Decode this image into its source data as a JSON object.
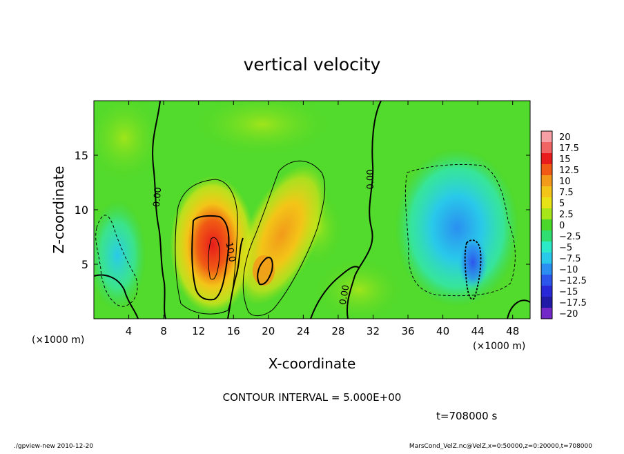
{
  "chart_data": {
    "type": "heatmap",
    "title": "vertical velocity",
    "xlabel": "X-coordinate",
    "ylabel": "Z-coordinate",
    "x_unit_label": "(×1000 m)",
    "y_unit_label": "(×1000 m)",
    "xlim": [
      0,
      50
    ],
    "ylim": [
      0,
      20
    ],
    "x_ticks": [
      4,
      8,
      12,
      16,
      20,
      24,
      28,
      32,
      36,
      40,
      44,
      48
    ],
    "y_ticks": [
      5,
      10,
      15
    ],
    "colorbar": {
      "labels": [
        "20",
        "17.5",
        "15",
        "12.5",
        "10",
        "7.5",
        "5",
        "2.5",
        "0",
        "−2.5",
        "−5",
        "−7.5",
        "−10",
        "−12.5",
        "−15",
        "−17.5",
        "−20"
      ],
      "colors": [
        "#f6a0a6",
        "#f06464",
        "#e81c1c",
        "#f05a14",
        "#f29a1a",
        "#f3c518",
        "#e7e317",
        "#a8e619",
        "#49d829",
        "#30dd70",
        "#2ce9c8",
        "#29c9ea",
        "#2a8ff0",
        "#2c55ec",
        "#2828d8",
        "#201aa6",
        "#7328c8"
      ]
    },
    "contour_labels": [
      "0.00",
      "10.0",
      "0.00",
      "0.00"
    ],
    "contour_interval_text": "CONTOUR INTERVAL = 5.000E+00",
    "time_text": "t=708000 s",
    "features": [
      {
        "kind": "updraft",
        "x": 13.5,
        "z": 6.5,
        "peak": 15
      },
      {
        "kind": "updraft",
        "x": 21.0,
        "z": 6.0,
        "peak": 8
      },
      {
        "kind": "downdraft",
        "x": 3.0,
        "z": 5.5,
        "peak": -6
      },
      {
        "kind": "downdraft",
        "x": 42.5,
        "z": 8.5,
        "peak": -10
      }
    ]
  },
  "footer": {
    "left": "./gpview-new   2010-12-20",
    "right": "MarsCond_VelZ.nc@VelZ,x=0:50000,z=0:20000,t=708000"
  }
}
